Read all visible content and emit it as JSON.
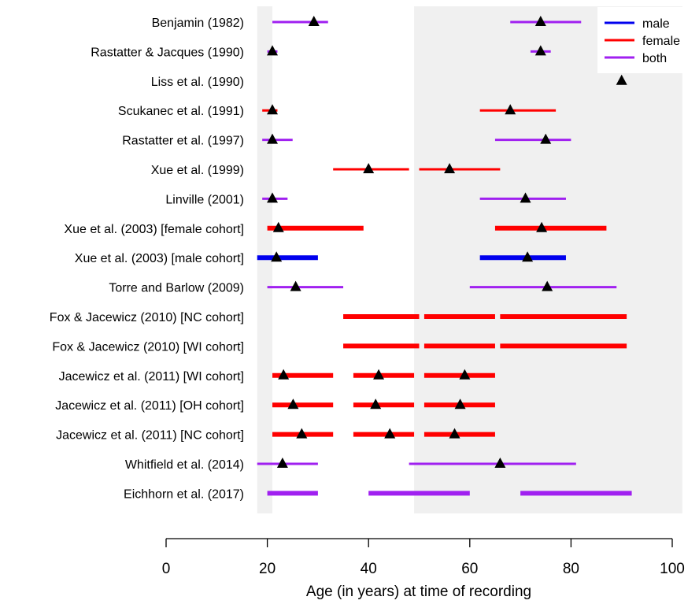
{
  "chart_data": {
    "type": "range-dot",
    "xlabel": "Age (in years) at time of recording",
    "xlim": [
      0,
      100
    ],
    "xticks": [
      0,
      20,
      40,
      60,
      80,
      100
    ],
    "shaded_regions": [
      [
        18,
        21
      ],
      [
        49,
        102
      ]
    ],
    "legend": {
      "placement": "top-right",
      "entries": [
        {
          "label": "male",
          "color": "#0000ee"
        },
        {
          "label": "female",
          "color": "#ff0000"
        },
        {
          "label": "both",
          "color": "#a020f0"
        }
      ]
    },
    "studies": [
      {
        "label": "Benjamin (1982)",
        "series": "both",
        "ranges": [
          [
            21,
            32
          ],
          [
            68,
            82
          ]
        ],
        "means": [
          29.2,
          74
        ],
        "thick": false
      },
      {
        "label": "Rastatter & Jacques (1990)",
        "series": "both",
        "ranges": [
          [
            20,
            22
          ],
          [
            72,
            76
          ]
        ],
        "means": [
          21,
          74
        ],
        "thick": false
      },
      {
        "label": "Liss et al. (1990)",
        "series": "both",
        "ranges": [],
        "means": [
          90
        ],
        "thick": false
      },
      {
        "label": "Scukanec et al. (1991)",
        "series": "female",
        "ranges": [
          [
            19,
            22
          ],
          [
            62,
            77
          ]
        ],
        "means": [
          21,
          68
        ],
        "thick": false
      },
      {
        "label": "Rastatter et al. (1997)",
        "series": "both",
        "ranges": [
          [
            19,
            25
          ],
          [
            65,
            80
          ]
        ],
        "means": [
          21,
          75
        ],
        "thick": false
      },
      {
        "label": "Xue et al. (1999)",
        "series": "female",
        "ranges": [
          [
            33,
            48
          ],
          [
            50,
            66
          ]
        ],
        "means": [
          40,
          56
        ],
        "thick": false
      },
      {
        "label": "Linville (2001)",
        "series": "both",
        "ranges": [
          [
            19,
            24
          ],
          [
            62,
            79
          ]
        ],
        "means": [
          21,
          71
        ],
        "thick": false
      },
      {
        "label": "Xue et al. (2003) [female cohort]",
        "series": "female",
        "ranges": [
          [
            20,
            39
          ],
          [
            65,
            87
          ]
        ],
        "means": [
          22.2,
          74.2
        ],
        "thick": true
      },
      {
        "label": "Xue et al. (2003) [male cohort]",
        "series": "male",
        "ranges": [
          [
            18,
            30
          ],
          [
            62,
            79
          ]
        ],
        "means": [
          21.8,
          71.4
        ],
        "thick": true
      },
      {
        "label": "Torre and Barlow (2009)",
        "series": "both",
        "ranges": [
          [
            20,
            35
          ],
          [
            60,
            89
          ]
        ],
        "means": [
          25.6,
          75.3
        ],
        "thick": false
      },
      {
        "label": "Fox & Jacewicz (2010) [NC cohort]",
        "series": "female",
        "ranges": [
          [
            35,
            50
          ],
          [
            51,
            65
          ],
          [
            66,
            91
          ]
        ],
        "means": [],
        "thick": true
      },
      {
        "label": "Fox & Jacewicz (2010) [WI cohort]",
        "series": "female",
        "ranges": [
          [
            35,
            50
          ],
          [
            51,
            65
          ],
          [
            66,
            91
          ]
        ],
        "means": [],
        "thick": true
      },
      {
        "label": "Jacewicz et al. (2011) [WI cohort]",
        "series": "female",
        "ranges": [
          [
            21,
            33
          ],
          [
            37,
            49
          ],
          [
            51,
            65
          ]
        ],
        "means": [
          23.2,
          42,
          59
        ],
        "thick": true
      },
      {
        "label": "Jacewicz et al. (2011) [OH cohort]",
        "series": "female",
        "ranges": [
          [
            21,
            33
          ],
          [
            37,
            49
          ],
          [
            51,
            65
          ]
        ],
        "means": [
          25.1,
          41.4,
          58.1
        ],
        "thick": true
      },
      {
        "label": "Jacewicz et al. (2011) [NC cohort]",
        "series": "female",
        "ranges": [
          [
            21,
            33
          ],
          [
            37,
            49
          ],
          [
            51,
            65
          ]
        ],
        "means": [
          26.8,
          44.2,
          57
        ],
        "thick": true
      },
      {
        "label": "Whitfield et al. (2014)",
        "series": "both",
        "ranges": [
          [
            18,
            30
          ],
          [
            48,
            81
          ]
        ],
        "means": [
          23,
          66
        ],
        "thick": false
      },
      {
        "label": "Eichhorn et al. (2017)",
        "series": "both",
        "ranges": [
          [
            20,
            30
          ],
          [
            40,
            60
          ],
          [
            70,
            92
          ]
        ],
        "means": [],
        "thick": true
      }
    ]
  }
}
